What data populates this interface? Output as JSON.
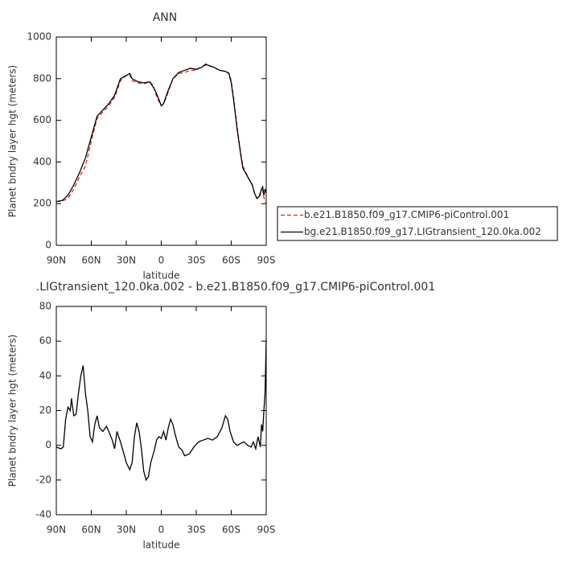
{
  "chart_data": [
    {
      "type": "line",
      "title": "ANN",
      "x_label": "latitude",
      "y_label": "Planet bndry layer hgt (meters)",
      "x": [
        90,
        85,
        80,
        75,
        70,
        65,
        60,
        55,
        50,
        45,
        40,
        35,
        30,
        27,
        25,
        20,
        15,
        10,
        7,
        5,
        2,
        0,
        -2,
        -5,
        -10,
        -15,
        -20,
        -25,
        -30,
        -35,
        -38,
        -40,
        -45,
        -50,
        -55,
        -58,
        -60,
        -62,
        -65,
        -68,
        -70,
        -75,
        -78,
        -80,
        -82,
        -84,
        -86,
        -87,
        -88,
        -89,
        -90
      ],
      "series": [
        {
          "name": "b.e21.B1850.f09_g17.CMIP6-piControl.001",
          "color": "#d62728",
          "linestyle": "dashed",
          "values": [
            210,
            212,
            225,
            270,
            330,
            380,
            500,
            610,
            640,
            670,
            710,
            790,
            815,
            820,
            790,
            780,
            775,
            785,
            770,
            730,
            690,
            670,
            680,
            720,
            800,
            825,
            830,
            840,
            840,
            860,
            865,
            862,
            855,
            840,
            835,
            828,
            790,
            710,
            570,
            450,
            380,
            320,
            290,
            250,
            225,
            230,
            260,
            265,
            230,
            210,
            205
          ]
        },
        {
          "name": "bg.e21.B1850.f09_g17.LIGtransient_120.0ka.002",
          "color": "#000000",
          "linestyle": "solid",
          "values": [
            210,
            215,
            240,
            290,
            350,
            420,
            520,
            620,
            650,
            680,
            720,
            800,
            815,
            825,
            800,
            785,
            780,
            785,
            760,
            740,
            700,
            670,
            680,
            730,
            800,
            830,
            840,
            850,
            845,
            855,
            870,
            865,
            855,
            840,
            835,
            825,
            780,
            700,
            560,
            440,
            370,
            320,
            290,
            250,
            225,
            235,
            270,
            280,
            240,
            270,
            250
          ]
        }
      ],
      "xlim": [
        90,
        -90
      ],
      "xticks": [
        {
          "value": 90,
          "label": "90N"
        },
        {
          "value": 60,
          "label": "60N"
        },
        {
          "value": 30,
          "label": "30N"
        },
        0,
        {
          "value": -30,
          "label": "30S"
        },
        {
          "value": -60,
          "label": "60S"
        },
        {
          "value": -90,
          "label": "90S"
        }
      ],
      "ylim": [
        0,
        1000
      ],
      "yticks": [
        0,
        200,
        400,
        600,
        800,
        1000
      ],
      "grid": false,
      "legend": "right"
    },
    {
      "type": "line",
      "title": ".LIGtransient_120.0ka.002 - b.e21.B1850.f09_g17.CMIP6-piControl.001",
      "x_label": "latitude",
      "y_label": "Planet bndry layer hgt (meters)",
      "x": [
        90,
        86,
        84,
        82,
        80,
        78,
        77,
        75,
        73,
        71,
        69,
        67,
        65,
        63,
        61,
        59,
        57,
        55,
        53,
        50,
        47,
        45,
        42,
        40,
        38,
        35,
        32,
        30,
        27,
        25,
        23,
        21,
        19,
        17,
        15,
        13,
        11,
        9,
        6,
        4,
        2,
        0,
        -2,
        -4,
        -6,
        -8,
        -10,
        -12,
        -15,
        -18,
        -20,
        -24,
        -28,
        -32,
        -36,
        -40,
        -44,
        -48,
        -52,
        -55,
        -57,
        -59,
        -62,
        -65,
        -68,
        -71,
        -74,
        -77,
        -79,
        -81,
        -83,
        -85,
        -86,
        -87,
        -88,
        -89,
        -90
      ],
      "series": [
        {
          "name": null,
          "color": "#000000",
          "linestyle": "solid",
          "values": [
            -1,
            -2,
            -1,
            15,
            22,
            20,
            27,
            17,
            18,
            30,
            40,
            46,
            30,
            20,
            5,
            2,
            12,
            17,
            10,
            8,
            11,
            8,
            3,
            -2,
            8,
            2,
            -5,
            -10,
            -14,
            -10,
            5,
            13,
            8,
            -2,
            -15,
            -20,
            -18,
            -10,
            -3,
            3,
            5,
            4,
            8,
            3,
            10,
            15,
            12,
            6,
            -1,
            -3,
            -6,
            -5,
            -1,
            2,
            3,
            4,
            3,
            5,
            10,
            17,
            15,
            8,
            2,
            0,
            1,
            2,
            0,
            -1,
            2,
            -2,
            5,
            -1,
            12,
            8,
            20,
            30,
            61
          ]
        }
      ],
      "xlim": [
        90,
        -90
      ],
      "xticks": [
        {
          "value": 90,
          "label": "90N"
        },
        {
          "value": 60,
          "label": "60N"
        },
        {
          "value": 30,
          "label": "30N"
        },
        0,
        {
          "value": -30,
          "label": "30S"
        },
        {
          "value": -60,
          "label": "60S"
        },
        {
          "value": -90,
          "label": "90S"
        }
      ],
      "ylim": [
        -40,
        80
      ],
      "yticks": [
        -40,
        -20,
        0,
        20,
        40,
        60,
        80
      ],
      "grid": false
    }
  ]
}
